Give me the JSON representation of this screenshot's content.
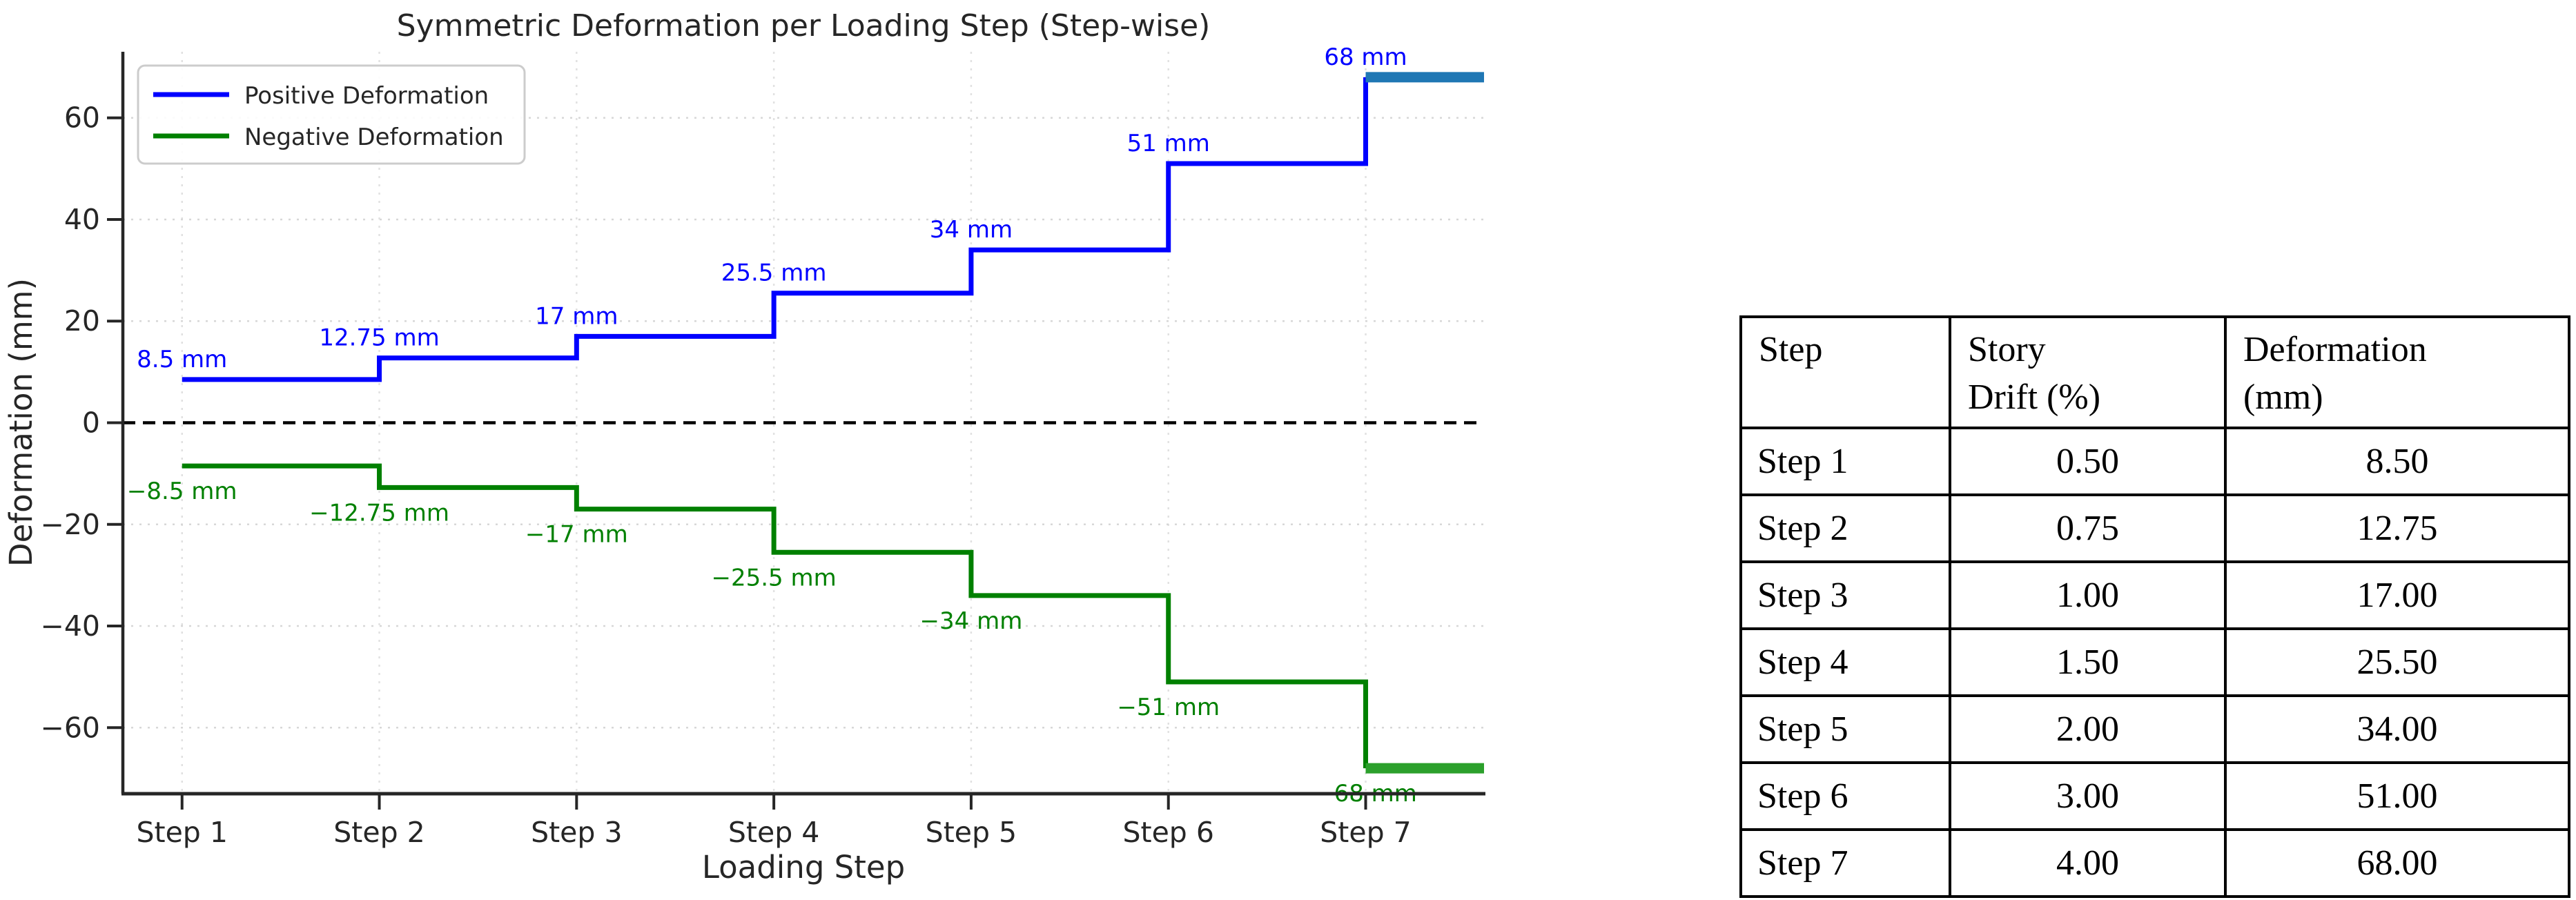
{
  "chart_data": {
    "type": "line",
    "subtype": "step-post",
    "title": "Symmetric Deformation per Loading Step (Step-wise)",
    "xlabel": "Loading Step",
    "ylabel": "Deformation (mm)",
    "categories": [
      "Step 1",
      "Step 2",
      "Step 3",
      "Step 4",
      "Step 5",
      "Step 6",
      "Step 7"
    ],
    "x": [
      1,
      2,
      3,
      4,
      5,
      6,
      7
    ],
    "series": [
      {
        "id": "positive-deformation",
        "name": "Positive Deformation",
        "color": "#0000ff",
        "final_segment_color": "#1f77b4",
        "values": [
          8.5,
          12.75,
          17,
          25.5,
          34,
          51,
          68
        ],
        "annotations": [
          "8.5 mm",
          "12.75 mm",
          "17 mm",
          "25.5 mm",
          "34 mm",
          "51 mm",
          "68 mm"
        ]
      },
      {
        "id": "negative-deformation",
        "name": "Negative Deformation",
        "color": "#008000",
        "final_segment_color": "#2ca02c",
        "values": [
          -8.5,
          -12.75,
          -17,
          -25.5,
          -34,
          -51,
          -68
        ],
        "annotations": [
          "−8.5 mm",
          "−12.75 mm",
          "−17 mm",
          "−25.5 mm",
          "−34 mm",
          "−51 mm",
          "−68 mm"
        ]
      }
    ],
    "yticks": [
      60,
      40,
      20,
      0,
      -20,
      -40,
      -60
    ],
    "ytick_labels": [
      "60",
      "40",
      "20",
      "0",
      "−20",
      "−40",
      "−60"
    ],
    "ylim": [
      -73,
      73
    ],
    "xlim": [
      0.7,
      7.6
    ],
    "grid": true,
    "grid_color": "#d7d7d7",
    "axis_color": "#262626",
    "zero_line": {
      "color": "#000000",
      "style": "dashed",
      "value": 0
    },
    "legend": {
      "position": "upper left"
    },
    "final_segment_extends_to": "right edge of axes"
  },
  "table": {
    "columns": [
      "Step",
      "Story\nDrift (%)",
      "Deformation\n(mm)"
    ],
    "rows": [
      [
        "Step 1",
        "0.50",
        "8.50"
      ],
      [
        "Step 2",
        "0.75",
        "12.75"
      ],
      [
        "Step 3",
        "1.00",
        "17.00"
      ],
      [
        "Step 4",
        "1.50",
        "25.50"
      ],
      [
        "Step 5",
        "2.00",
        "34.00"
      ],
      [
        "Step 6",
        "3.00",
        "51.00"
      ],
      [
        "Step 7",
        "4.00",
        "68.00"
      ]
    ]
  }
}
